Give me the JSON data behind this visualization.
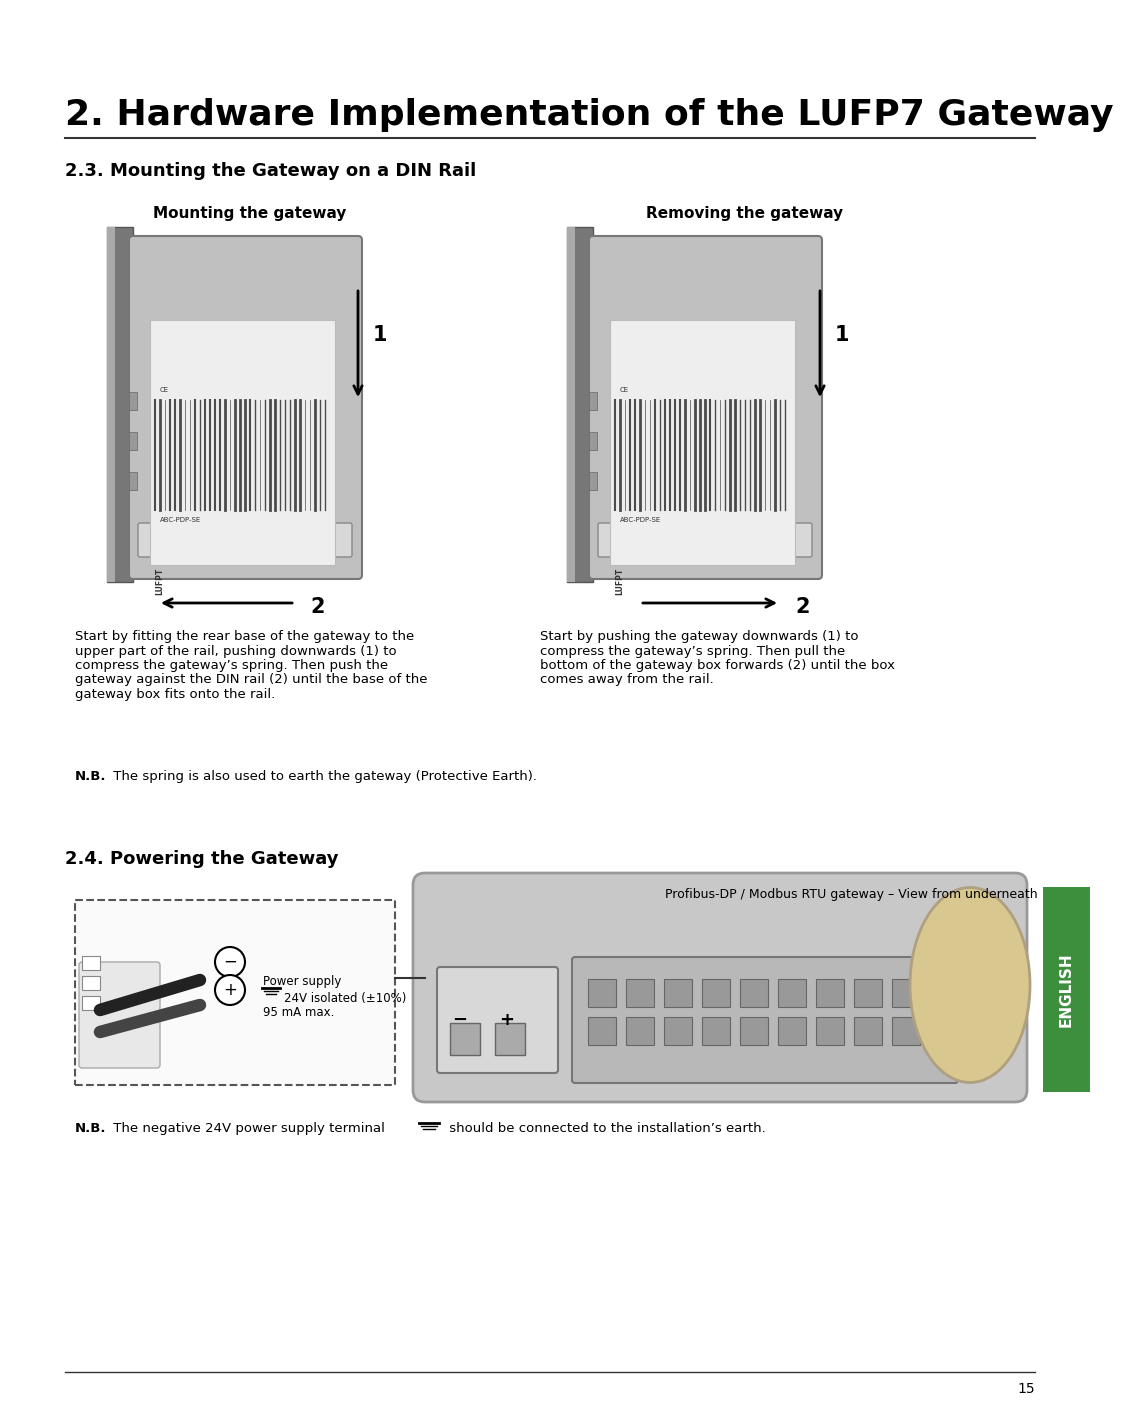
{
  "title": "2. Hardware Implementation of the LUFP7 Gateway",
  "section1_title": "2.3. Mounting the Gateway on a DIN Rail",
  "section2_title": "2.4. Powering the Gateway",
  "mounting_caption": "Mounting the gateway",
  "removing_caption": "Removing the gateway",
  "profibus_label": "Profibus-DP / Modbus RTU gateway – View from underneath",
  "power_label_line1": "Power supply",
  "power_label_line2": "24V isolated (±10%)",
  "power_label_line3": "95 mA max.",
  "text_mounting_lines": [
    "Start by fitting the rear base of the gateway to the",
    "upper part of the rail, pushing downwards (1) to",
    "compress the gateway’s spring. Then push the",
    "gateway against the DIN rail (2) until the base of the",
    "gateway box fits onto the rail."
  ],
  "text_removing_lines": [
    "Start by pushing the gateway downwards (1) to",
    "compress the gateway’s spring. Then pull the",
    "bottom of the gateway box forwards (2) until the box",
    "comes away from the rail."
  ],
  "nb1_bold": "N.B.",
  "nb1_rest": " The spring is also used to earth the gateway (Protective Earth).",
  "nb2_bold": "N.B.",
  "nb2_rest": " The negative 24V power supply terminal",
  "nb2_suffix": " should be connected to the installation’s earth.",
  "page_number": "15",
  "english_label": "ENGLISH",
  "bg_color": "#ffffff",
  "title_color": "#000000",
  "english_bg": "#3d8f3d",
  "english_text": "#ffffff"
}
